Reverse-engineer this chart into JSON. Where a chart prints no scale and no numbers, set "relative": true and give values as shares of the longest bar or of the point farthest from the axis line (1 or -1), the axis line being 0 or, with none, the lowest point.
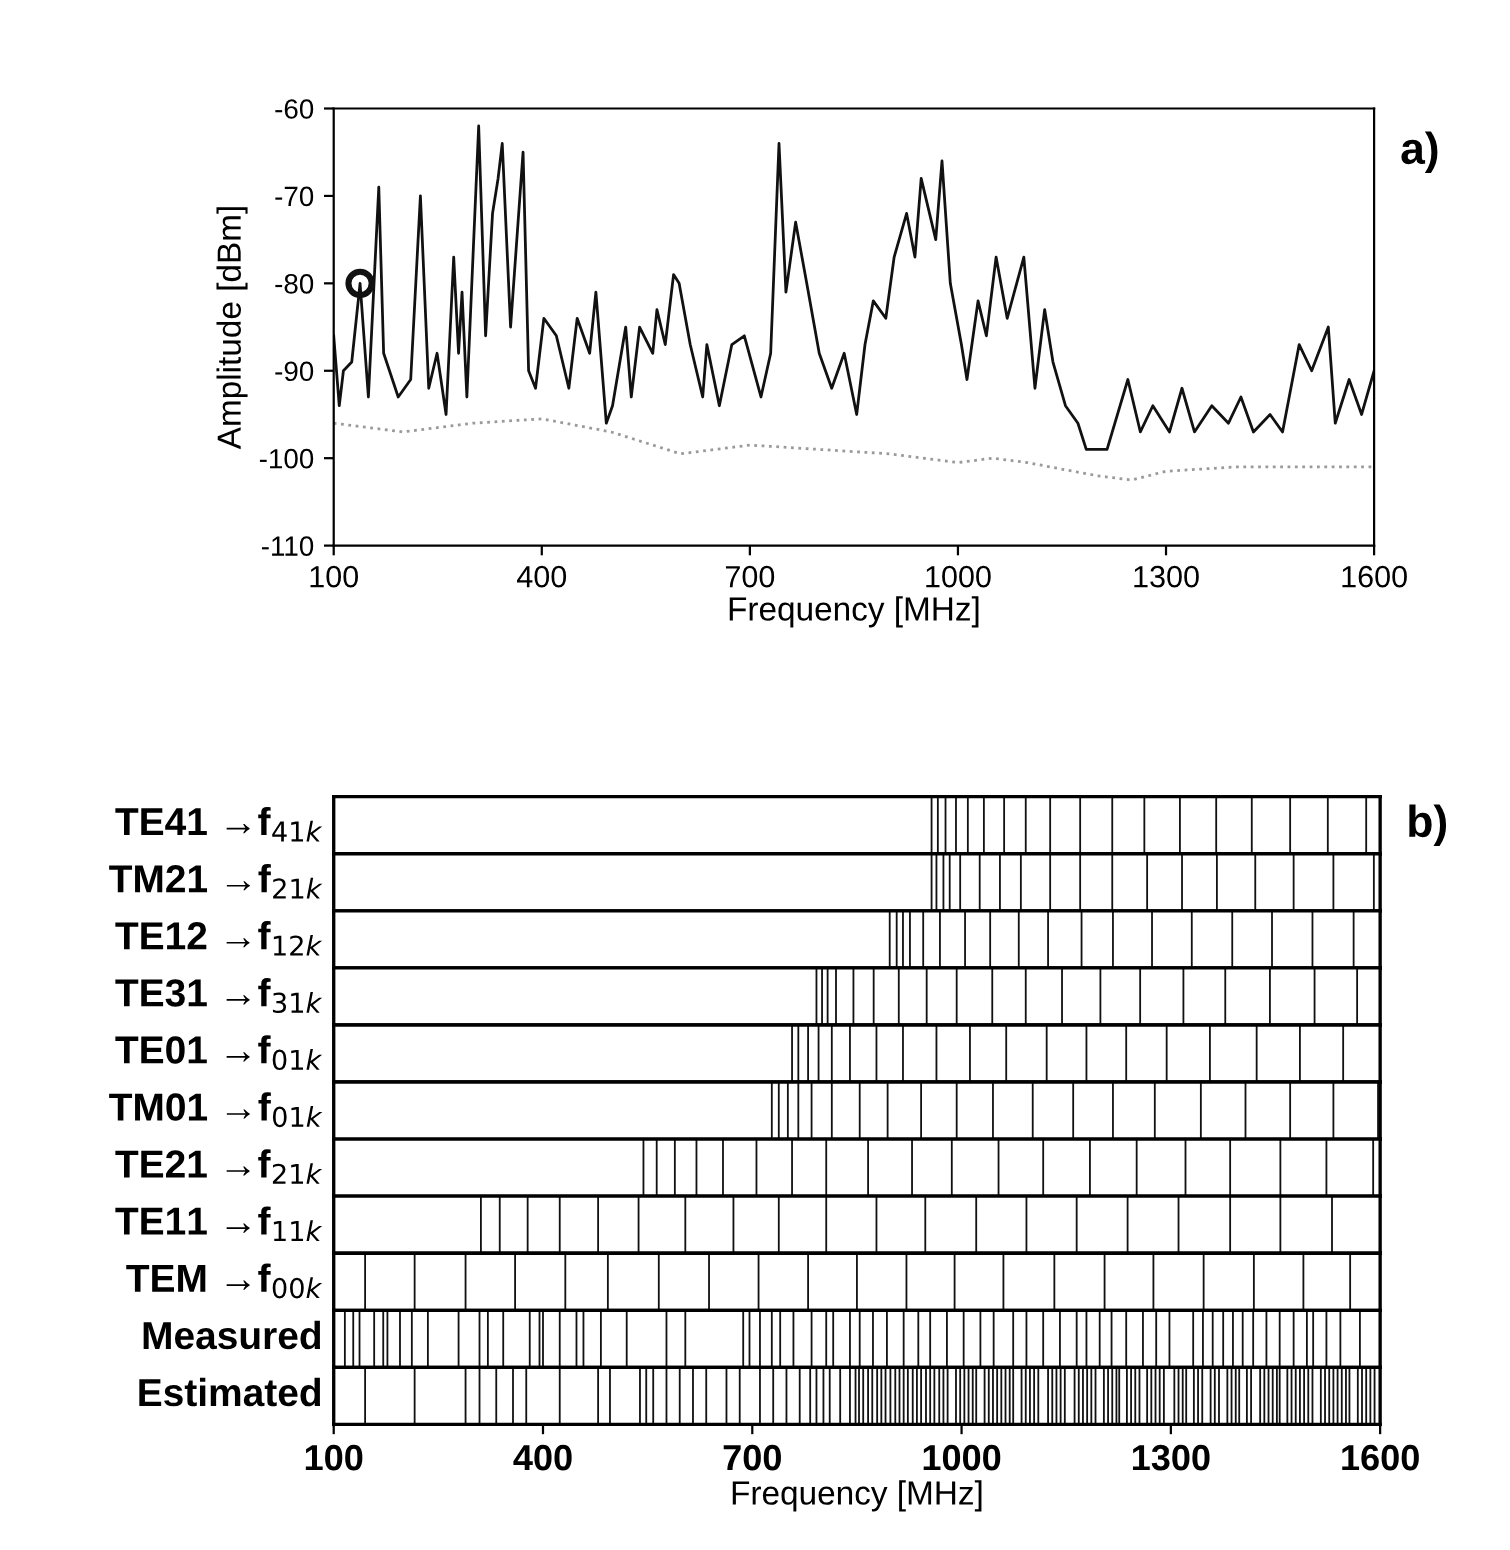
{
  "chart_data": [
    {
      "type": "line",
      "xlabel": "Frequency [MHz]",
      "ylabel": "Amplitude [dBm]",
      "xlim": [
        100,
        1600
      ],
      "xticks": [
        100,
        400,
        700,
        1000,
        1300,
        1600
      ],
      "ylim": [
        -110,
        -60
      ],
      "yticks": [
        -110,
        -100,
        -90,
        -80,
        -70,
        -60
      ],
      "grid": false,
      "annotations": [
        "a)"
      ],
      "series": [
        {
          "color": "#111111",
          "line_style": "solid",
          "x": [
            100,
            108,
            114,
            126,
            138,
            150,
            165,
            172,
            193,
            211,
            225,
            237,
            249,
            262,
            273,
            280,
            285,
            292,
            309,
            319,
            329,
            337,
            343,
            355,
            373,
            381,
            391,
            403,
            421,
            439,
            451,
            469,
            478,
            493,
            502,
            521,
            529,
            541,
            560,
            566,
            578,
            590,
            598,
            614,
            632,
            638,
            656,
            674,
            692,
            716,
            730,
            742,
            752,
            766,
            782,
            800,
            818,
            836,
            854,
            866,
            878,
            896,
            908,
            926,
            938,
            947,
            956,
            968,
            977,
            989,
            1005,
            1013,
            1029,
            1041,
            1055,
            1071,
            1095,
            1111,
            1125,
            1137,
            1155,
            1173,
            1185,
            1215,
            1245,
            1263,
            1281,
            1305,
            1323,
            1341,
            1366,
            1390,
            1408,
            1426,
            1450,
            1468,
            1492,
            1510,
            1534,
            1544,
            1564,
            1582,
            1600
          ],
          "values": [
            -86,
            -94,
            -90,
            -89,
            -80,
            -93,
            -69,
            -88,
            -93,
            -91,
            -70,
            -92,
            -88,
            -95,
            -77,
            -88,
            -81,
            -93,
            -62,
            -86,
            -72,
            -68,
            -64,
            -85,
            -65,
            -90,
            -92,
            -84,
            -86,
            -92,
            -84,
            -88,
            -81,
            -96,
            -94,
            -85,
            -93,
            -85,
            -88,
            -83,
            -87,
            -79,
            -80,
            -87,
            -93,
            -87,
            -94,
            -87,
            -86,
            -93,
            -88,
            -64,
            -81,
            -73,
            -80,
            -88,
            -92,
            -88,
            -95,
            -87,
            -82,
            -84,
            -77,
            -72,
            -77,
            -68,
            -71,
            -75,
            -66,
            -80,
            -87,
            -91,
            -82,
            -86,
            -77,
            -84,
            -77,
            -92,
            -83,
            -89,
            -94,
            -96,
            -99,
            -99,
            -91,
            -97,
            -94,
            -97,
            -92,
            -97,
            -94,
            -96,
            -93,
            -97,
            -95,
            -97,
            -87,
            -90,
            -85,
            -96,
            -91,
            -95,
            -90
          ]
        },
        {
          "color": "#9a9a9a",
          "line_style": "dotted",
          "x": [
            100,
            200,
            300,
            400,
            500,
            600,
            700,
            800,
            900,
            1000,
            1050,
            1100,
            1200,
            1250,
            1300,
            1400,
            1600
          ],
          "values": [
            -96,
            -97,
            -96,
            -95.5,
            -97,
            -99.5,
            -98.5,
            -99,
            -99.5,
            -100.5,
            -100,
            -100.5,
            -102,
            -102.5,
            -101.5,
            -101,
            -101
          ]
        },
        {
          "type": "scatter",
          "marker": "circle",
          "color": "#111111",
          "x": [
            138
          ],
          "values": [
            -80
          ]
        }
      ]
    },
    {
      "type": "bar",
      "relative": true,
      "ylabel": "TE41 →f$_{41k}$",
      "xlim": [
        100,
        1600
      ],
      "tick_labels": false,
      "annotations": [
        "b)"
      ],
      "color": "#111111",
      "x": [
        957,
        966,
        977,
        992,
        1009,
        1032,
        1061,
        1092,
        1127,
        1170,
        1216,
        1262,
        1313,
        1365,
        1416,
        1471,
        1525,
        1580
      ],
      "values": [
        1,
        1,
        1,
        1,
        1,
        1,
        1,
        1,
        1,
        1,
        1,
        1,
        1,
        1,
        1,
        1,
        1,
        1
      ]
    },
    {
      "type": "bar",
      "relative": true,
      "ylabel": "TM21 →f$_{21k}$",
      "xlim": [
        100,
        1600
      ],
      "tick_labels": false,
      "color": "#111111",
      "x": [
        957,
        964,
        974,
        983,
        998,
        1026,
        1055,
        1085,
        1127,
        1170,
        1216,
        1266,
        1316,
        1366,
        1421,
        1476,
        1533,
        1591
      ],
      "values": [
        1,
        1,
        1,
        1,
        1,
        1,
        1,
        1,
        1,
        1,
        1,
        1,
        1,
        1,
        1,
        1,
        1,
        1
      ]
    },
    {
      "type": "bar",
      "relative": true,
      "ylabel": "TE12 →f$_{12k}$",
      "xlim": [
        100,
        1600
      ],
      "tick_labels": false,
      "color": "#111111",
      "x": [
        897,
        907,
        916,
        926,
        945,
        969,
        1005,
        1041,
        1082,
        1124,
        1172,
        1217,
        1273,
        1330,
        1388,
        1445,
        1503,
        1562
      ],
      "values": [
        1,
        1,
        1,
        1,
        1,
        1,
        1,
        1,
        1,
        1,
        1,
        1,
        1,
        1,
        1,
        1,
        1,
        1
      ]
    },
    {
      "type": "bar",
      "relative": true,
      "ylabel": "TE31 →f$_{31k}$",
      "xlim": [
        100,
        1600
      ],
      "tick_labels": false,
      "color": "#111111",
      "x": [
        792,
        800,
        808,
        820,
        845,
        874,
        910,
        950,
        993,
        1044,
        1092,
        1144,
        1199,
        1256,
        1318,
        1378,
        1442,
        1506,
        1567
      ],
      "values": [
        1,
        1,
        1,
        1,
        1,
        1,
        1,
        1,
        1,
        1,
        1,
        1,
        1,
        1,
        1,
        1,
        1,
        1,
        1
      ]
    },
    {
      "type": "bar",
      "relative": true,
      "ylabel": "TE01 →f$_{01k}$",
      "xlim": [
        100,
        1600
      ],
      "tick_labels": false,
      "color": "#111111",
      "x": [
        757,
        766,
        780,
        795,
        814,
        840,
        878,
        916,
        964,
        1012,
        1064,
        1122,
        1179,
        1236,
        1294,
        1356,
        1423,
        1485,
        1547
      ],
      "values": [
        1,
        1,
        1,
        1,
        1,
        1,
        1,
        1,
        1,
        1,
        1,
        1,
        1,
        1,
        1,
        1,
        1,
        1,
        1
      ]
    },
    {
      "type": "bar",
      "relative": true,
      "ylabel": "TM01 →f$_{01k}$",
      "xlim": [
        100,
        1600
      ],
      "tick_labels": false,
      "color": "#111111",
      "x": [
        728,
        738,
        751,
        766,
        785,
        814,
        854,
        894,
        942,
        993,
        1045,
        1102,
        1160,
        1217,
        1277,
        1343,
        1407,
        1471,
        1533,
        1597
      ],
      "values": [
        1,
        1,
        1,
        1,
        1,
        1,
        1,
        1,
        1,
        1,
        1,
        1,
        1,
        1,
        1,
        1,
        1,
        1,
        1,
        1
      ]
    },
    {
      "type": "bar",
      "relative": true,
      "ylabel": "TE21 →f$_{21k}$",
      "xlim": [
        100,
        1600
      ],
      "tick_labels": false,
      "color": "#111111",
      "x": [
        544,
        563,
        589,
        620,
        658,
        706,
        757,
        806,
        866,
        929,
        986,
        1053,
        1117,
        1184,
        1251,
        1321,
        1385,
        1457,
        1523,
        1590
      ],
      "values": [
        1,
        1,
        1,
        1,
        1,
        1,
        1,
        1,
        1,
        1,
        1,
        1,
        1,
        1,
        1,
        1,
        1,
        1,
        1,
        1
      ]
    },
    {
      "type": "bar",
      "relative": true,
      "ylabel": "TE11 →f$_{11k}$",
      "xlim": [
        100,
        1600
      ],
      "tick_labels": false,
      "color": "#111111",
      "x": [
        311,
        338,
        378,
        424,
        479,
        537,
        604,
        673,
        738,
        806,
        878,
        948,
        1021,
        1093,
        1165,
        1238,
        1311,
        1385,
        1457,
        1531
      ],
      "values": [
        1,
        1,
        1,
        1,
        1,
        1,
        1,
        1,
        1,
        1,
        1,
        1,
        1,
        1,
        1,
        1,
        1,
        1,
        1,
        1
      ]
    },
    {
      "type": "bar",
      "relative": true,
      "ylabel": "TEM →f$_{00k}$",
      "xlim": [
        100,
        1600
      ],
      "tick_labels": false,
      "color": "#111111",
      "x": [
        145,
        216,
        289,
        360,
        432,
        493,
        566,
        638,
        709,
        780,
        850,
        921,
        990,
        1060,
        1133,
        1205,
        1275,
        1347,
        1419,
        1490,
        1557
      ],
      "values": [
        1,
        1,
        1,
        1,
        1,
        1,
        1,
        1,
        1,
        1,
        1,
        1,
        1,
        1,
        1,
        1,
        1,
        1,
        1,
        1,
        1
      ]
    },
    {
      "type": "bar",
      "relative": true,
      "ylabel": "Measured",
      "xlim": [
        100,
        1600
      ],
      "tick_labels": false,
      "color": "#111111",
      "x": [
        116,
        128,
        137,
        158,
        171,
        177,
        195,
        212,
        235,
        279,
        309,
        321,
        343,
        381,
        395,
        400,
        424,
        448,
        458,
        483,
        520,
        577,
        604,
        687,
        696,
        711,
        728,
        740,
        759,
        785,
        806,
        816,
        840,
        854,
        873,
        893,
        917,
        938,
        955,
        979,
        1003,
        1027,
        1046,
        1074,
        1093,
        1117,
        1141,
        1165,
        1179,
        1198,
        1215,
        1236,
        1260,
        1279,
        1298,
        1332,
        1346,
        1360,
        1375,
        1389,
        1403,
        1418,
        1437,
        1456,
        1476,
        1495,
        1504,
        1523,
        1543,
        1571
      ],
      "values": [
        1,
        1,
        1,
        1,
        1,
        1,
        1,
        1,
        1,
        1,
        1,
        1,
        1,
        1,
        1,
        1,
        1,
        1,
        1,
        1,
        1,
        1,
        1,
        1,
        1,
        1,
        1,
        1,
        1,
        1,
        1,
        1,
        1,
        1,
        1,
        1,
        1,
        1,
        1,
        1,
        1,
        1,
        1,
        1,
        1,
        1,
        1,
        1,
        1,
        1,
        1,
        1,
        1,
        1,
        1,
        1,
        1,
        1,
        1,
        1,
        1,
        1,
        1,
        1,
        1,
        1,
        1,
        1,
        1,
        1
      ]
    },
    {
      "type": "bar",
      "relative": true,
      "ylabel": "Estimated",
      "xlabel": "Frequency [MHz]",
      "xlim": [
        100,
        1600
      ],
      "xticks": [
        100,
        400,
        700,
        1000,
        1300,
        1600
      ],
      "tick_labels": "x",
      "color": "#111111",
      "x": [
        145,
        216,
        289,
        309,
        333,
        357,
        376,
        424,
        479,
        496,
        539,
        548,
        558,
        577,
        596,
        615,
        634,
        663,
        682,
        711,
        730,
        749,
        768,
        783,
        792,
        802,
        811,
        826,
        840,
        848,
        853,
        859,
        866,
        872,
        879,
        885,
        891,
        898,
        905,
        911,
        917,
        923,
        930,
        936,
        942,
        949,
        955,
        961,
        968,
        974,
        980,
        992,
        998,
        1004,
        1010,
        1016,
        1021,
        1033,
        1039,
        1045,
        1051,
        1057,
        1063,
        1069,
        1074,
        1086,
        1092,
        1098,
        1104,
        1110,
        1124,
        1130,
        1136,
        1142,
        1148,
        1162,
        1168,
        1174,
        1180,
        1186,
        1192,
        1204,
        1210,
        1216,
        1222,
        1226,
        1237,
        1243,
        1249,
        1255,
        1266,
        1272,
        1278,
        1284,
        1290,
        1305,
        1311,
        1317,
        1322,
        1333,
        1339,
        1345,
        1357,
        1363,
        1369,
        1381,
        1387,
        1393,
        1398,
        1409,
        1415,
        1428,
        1434,
        1440,
        1446,
        1452,
        1456,
        1467,
        1473,
        1479,
        1485,
        1491,
        1497,
        1503,
        1515,
        1521,
        1527,
        1533,
        1539,
        1545,
        1551,
        1556,
        1568,
        1574,
        1580,
        1586,
        1592
      ],
      "values": [
        1,
        1,
        1,
        1,
        1,
        1,
        1,
        1,
        1,
        1,
        1,
        1,
        1,
        1,
        1,
        1,
        1,
        1,
        1,
        1,
        1,
        1,
        1,
        1,
        1,
        1,
        1,
        1,
        1,
        1,
        1,
        1,
        1,
        1,
        1,
        1,
        1,
        1,
        1,
        1,
        1,
        1,
        1,
        1,
        1,
        1,
        1,
        1,
        1,
        1,
        1,
        1,
        1,
        1,
        1,
        1,
        1,
        1,
        1,
        1,
        1,
        1,
        1,
        1,
        1,
        1,
        1,
        1,
        1,
        1,
        1,
        1,
        1,
        1,
        1,
        1,
        1,
        1,
        1,
        1,
        1,
        1,
        1,
        1,
        1,
        1,
        1,
        1,
        1,
        1,
        1,
        1,
        1,
        1,
        1,
        1,
        1,
        1,
        1,
        1,
        1,
        1,
        1,
        1,
        1,
        1,
        1,
        1,
        1,
        1,
        1,
        1,
        1,
        1,
        1,
        1,
        1,
        1,
        1,
        1,
        1,
        1,
        1,
        1,
        1,
        1,
        1,
        1,
        1,
        1,
        1,
        1,
        1,
        1,
        1,
        1,
        1
      ]
    }
  ]
}
